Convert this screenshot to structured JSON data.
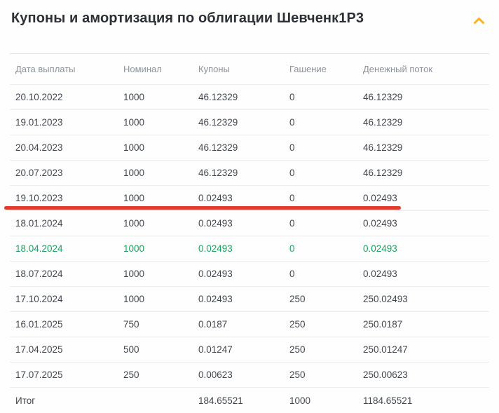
{
  "header": {
    "title": "Купоны и амортизация по облигации Шевченк1Р3",
    "collapse_icon": "chevron-up-icon"
  },
  "table": {
    "columns": [
      "Дата выплаты",
      "Номинал",
      "Купоны",
      "Гашение",
      "Денежный поток"
    ],
    "rows": [
      {
        "date": "20.10.2022",
        "nominal": "1000",
        "coupon": "46.12329",
        "redemption": "0",
        "cashflow": "46.12329"
      },
      {
        "date": "19.01.2023",
        "nominal": "1000",
        "coupon": "46.12329",
        "redemption": "0",
        "cashflow": "46.12329"
      },
      {
        "date": "20.04.2023",
        "nominal": "1000",
        "coupon": "46.12329",
        "redemption": "0",
        "cashflow": "46.12329"
      },
      {
        "date": "20.07.2023",
        "nominal": "1000",
        "coupon": "46.12329",
        "redemption": "0",
        "cashflow": "46.12329"
      },
      {
        "date": "19.10.2023",
        "nominal": "1000",
        "coupon": "0.02493",
        "redemption": "0",
        "cashflow": "0.02493",
        "red_underline": true
      },
      {
        "date": "18.01.2024",
        "nominal": "1000",
        "coupon": "0.02493",
        "redemption": "0",
        "cashflow": "0.02493"
      },
      {
        "date": "18.04.2024",
        "nominal": "1000",
        "coupon": "0.02493",
        "redemption": "0",
        "cashflow": "0.02493",
        "highlight": "green"
      },
      {
        "date": "18.07.2024",
        "nominal": "1000",
        "coupon": "0.02493",
        "redemption": "0",
        "cashflow": "0.02493"
      },
      {
        "date": "17.10.2024",
        "nominal": "1000",
        "coupon": "0.02493",
        "redemption": "250",
        "cashflow": "250.02493"
      },
      {
        "date": "16.01.2025",
        "nominal": "750",
        "coupon": "0.0187",
        "redemption": "250",
        "cashflow": "250.0187"
      },
      {
        "date": "17.04.2025",
        "nominal": "500",
        "coupon": "0.01247",
        "redemption": "250",
        "cashflow": "250.01247"
      },
      {
        "date": "17.07.2025",
        "nominal": "250",
        "coupon": "0.00623",
        "redemption": "250",
        "cashflow": "250.00623"
      }
    ],
    "total": {
      "label": "Итог",
      "nominal": "",
      "coupon": "184.65521",
      "redemption": "1000",
      "cashflow": "1184.65521"
    }
  },
  "colors": {
    "accent_orange": "#ffb020",
    "highlight_green": "#1ba25e",
    "annotation_red": "#e23b2e"
  }
}
